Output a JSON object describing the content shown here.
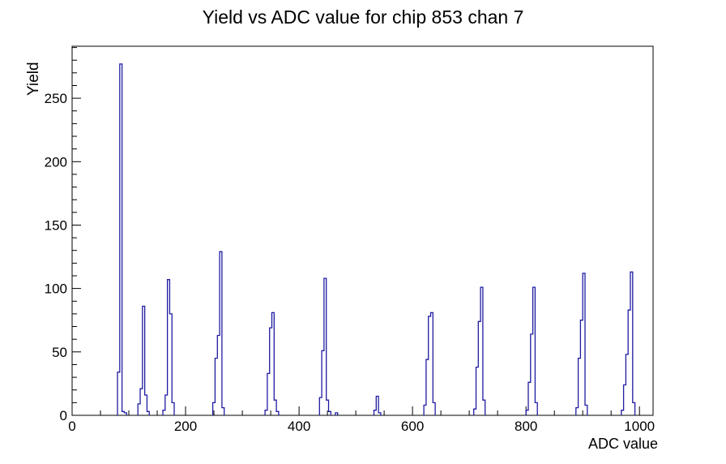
{
  "chart_data": {
    "type": "bar",
    "title": "Yield vs ADC value for chip 853 chan 7",
    "xlabel": "ADC value",
    "ylabel": "Yield",
    "xlim": [
      0,
      1024
    ],
    "ylim": [
      0,
      291
    ],
    "grid": false,
    "legend": "none",
    "bin_width": 4,
    "line_color": "#1e1ca0",
    "axis_color": "#000000",
    "background_color": "#ffffff",
    "x_ticks": {
      "major": [
        0,
        200,
        400,
        600,
        800,
        1000
      ],
      "major_step": 200,
      "minor_step": 50
    },
    "y_ticks": {
      "major": [
        0,
        50,
        100,
        150,
        200,
        250
      ],
      "major_step": 50,
      "minor_step": 10
    },
    "bars": [
      [
        80,
        34
      ],
      [
        84,
        277
      ],
      [
        88,
        3
      ],
      [
        92,
        2
      ],
      [
        116,
        9
      ],
      [
        120,
        21
      ],
      [
        124,
        86
      ],
      [
        128,
        16
      ],
      [
        132,
        3
      ],
      [
        160,
        4
      ],
      [
        164,
        16
      ],
      [
        168,
        107
      ],
      [
        172,
        80
      ],
      [
        176,
        10
      ],
      [
        248,
        10
      ],
      [
        252,
        45
      ],
      [
        256,
        63
      ],
      [
        260,
        129
      ],
      [
        264,
        6
      ],
      [
        340,
        4
      ],
      [
        344,
        33
      ],
      [
        348,
        69
      ],
      [
        352,
        81
      ],
      [
        356,
        12
      ],
      [
        360,
        3
      ],
      [
        436,
        14
      ],
      [
        440,
        51
      ],
      [
        444,
        108
      ],
      [
        448,
        12
      ],
      [
        452,
        3
      ],
      [
        464,
        2
      ],
      [
        532,
        4
      ],
      [
        536,
        15
      ],
      [
        540,
        2
      ],
      [
        620,
        8
      ],
      [
        624,
        44
      ],
      [
        628,
        78
      ],
      [
        632,
        81
      ],
      [
        636,
        10
      ],
      [
        708,
        5
      ],
      [
        712,
        38
      ],
      [
        716,
        74
      ],
      [
        720,
        101
      ],
      [
        724,
        12
      ],
      [
        800,
        4
      ],
      [
        804,
        26
      ],
      [
        808,
        64
      ],
      [
        812,
        101
      ],
      [
        816,
        10
      ],
      [
        888,
        6
      ],
      [
        892,
        45
      ],
      [
        896,
        75
      ],
      [
        900,
        112
      ],
      [
        904,
        8
      ],
      [
        968,
        4
      ],
      [
        972,
        24
      ],
      [
        976,
        48
      ],
      [
        980,
        83
      ],
      [
        984,
        113
      ],
      [
        988,
        10
      ]
    ]
  }
}
